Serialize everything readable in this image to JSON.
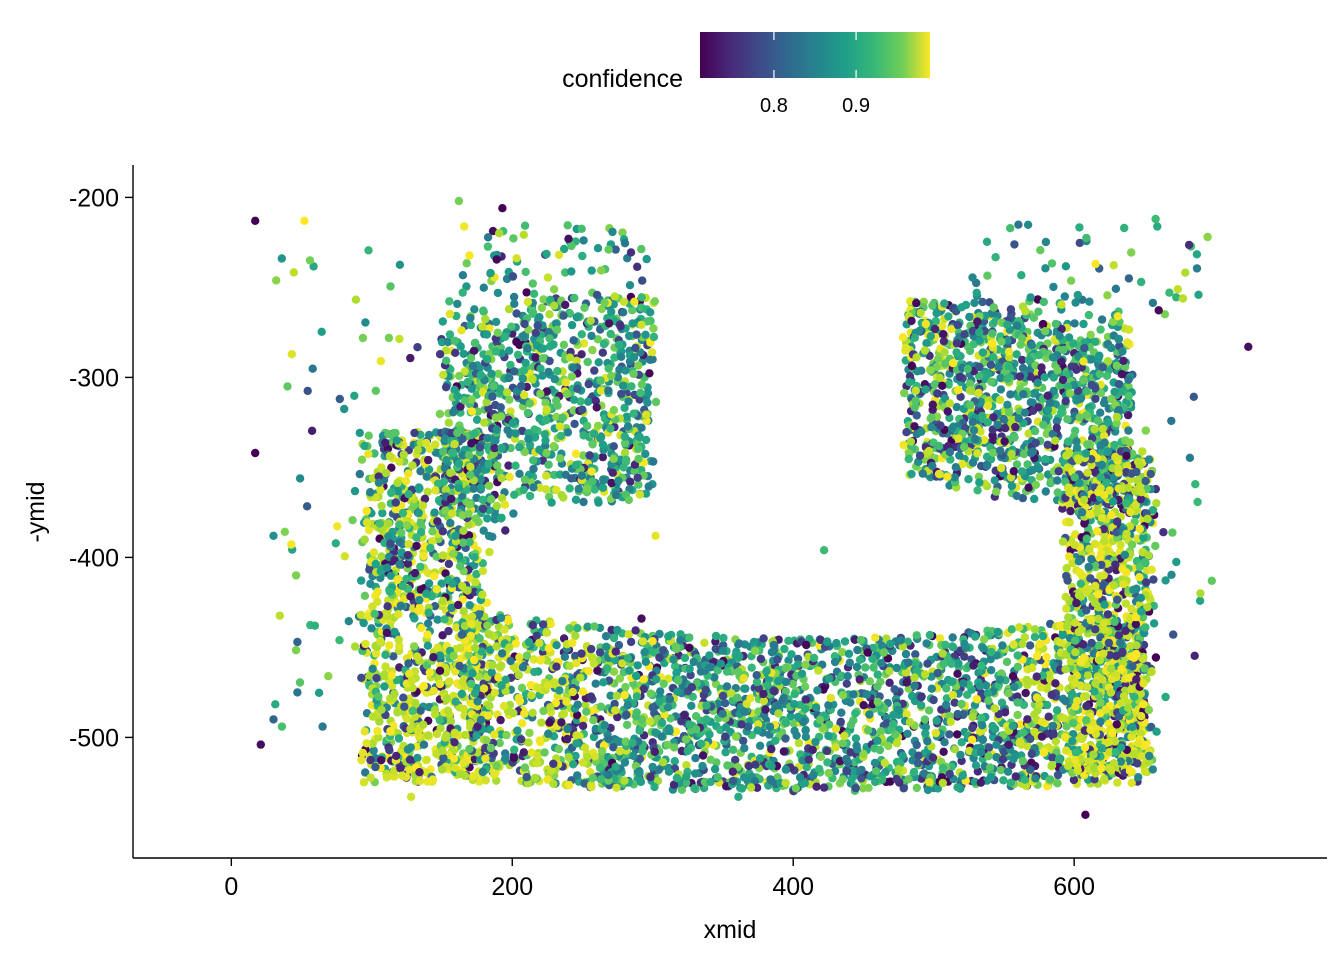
{
  "chart_data": {
    "type": "scatter",
    "xlabel": "xmid",
    "ylabel": "-ymid",
    "xlim": [
      -70,
      780
    ],
    "ylim": [
      -567,
      -182
    ],
    "x_ticks": [
      0,
      200,
      400,
      600
    ],
    "x_tick_labels": [
      "0",
      "200",
      "400",
      "600"
    ],
    "y_ticks": [
      -200,
      -300,
      -400,
      -500
    ],
    "y_tick_labels": [
      "-200",
      "-300",
      "-400",
      "-500"
    ],
    "grid": false,
    "legend": {
      "title": "confidence",
      "placement": "top",
      "type": "colorbar",
      "range": [
        0.71,
        0.99
      ],
      "ticks": [
        0.8,
        0.9
      ],
      "tick_labels": [
        "0.8",
        "0.9"
      ],
      "colormap": "viridis",
      "colors": [
        "#440154",
        "#3b528b",
        "#21918c",
        "#5ec962",
        "#fde725"
      ]
    },
    "point_color_note_colors": [
      "#440154",
      "#46337e",
      "#365c8d",
      "#277f8e",
      "#1fa187",
      "#4ac16d",
      "#a0da39",
      "#fde725"
    ],
    "outlier_points": [
      {
        "x": 17,
        "y": -213,
        "c": 0.71
      },
      {
        "x": 17,
        "y": -342,
        "c": 0.71
      },
      {
        "x": 21,
        "y": -504,
        "c": 0.72
      },
      {
        "x": 30,
        "y": -490,
        "c": 0.8
      },
      {
        "x": 30,
        "y": -388,
        "c": 0.85
      },
      {
        "x": 40,
        "y": -305,
        "c": 0.92
      },
      {
        "x": 47,
        "y": -447,
        "c": 0.8
      },
      {
        "x": 47,
        "y": -475,
        "c": 0.82
      },
      {
        "x": 52,
        "y": -213,
        "c": 0.99
      },
      {
        "x": 56,
        "y": -235,
        "c": 0.93
      },
      {
        "x": 69,
        "y": -466,
        "c": 0.94
      },
      {
        "x": 77,
        "y": -446,
        "c": 0.9
      },
      {
        "x": 162,
        "y": -202,
        "c": 0.93
      },
      {
        "x": 193,
        "y": -206,
        "c": 0.71
      },
      {
        "x": 240,
        "y": -223,
        "c": 0.72
      },
      {
        "x": 292,
        "y": -434,
        "c": 0.72
      },
      {
        "x": 302,
        "y": -388,
        "c": 0.98
      },
      {
        "x": 422,
        "y": -396,
        "c": 0.9
      },
      {
        "x": 608,
        "y": -543,
        "c": 0.71
      },
      {
        "x": 695,
        "y": -222,
        "c": 0.94
      },
      {
        "x": 698,
        "y": -413,
        "c": 0.92
      },
      {
        "x": 724,
        "y": -283,
        "c": 0.72
      },
      {
        "x": 658,
        "y": -212,
        "c": 0.9
      },
      {
        "x": 128,
        "y": -533,
        "c": 0.97
      },
      {
        "x": 361,
        "y": -533,
        "c": 0.88
      }
    ],
    "point_clusters": [
      {
        "x_range": [
          90,
          180
        ],
        "y_range": [
          -330,
          -530
        ],
        "count": 1100,
        "color_mix": "mostly yellow-green"
      },
      {
        "x_range": [
          180,
          300
        ],
        "y_range": [
          -250,
          -370
        ],
        "count": 900,
        "color_mix": "mixed teal / purple"
      },
      {
        "x_range": [
          180,
          650
        ],
        "y_range": [
          -420,
          -530
        ],
        "count": 2600,
        "color_mix": "mixed teal / purple / yellow"
      },
      {
        "x_range": [
          470,
          650
        ],
        "y_range": [
          -240,
          -420
        ],
        "count": 1300,
        "color_mix": "mixed teal / purple"
      },
      {
        "x_range": [
          580,
          660
        ],
        "y_range": [
          -350,
          -520
        ],
        "count": 900,
        "color_mix": "mostly yellow"
      }
    ]
  }
}
